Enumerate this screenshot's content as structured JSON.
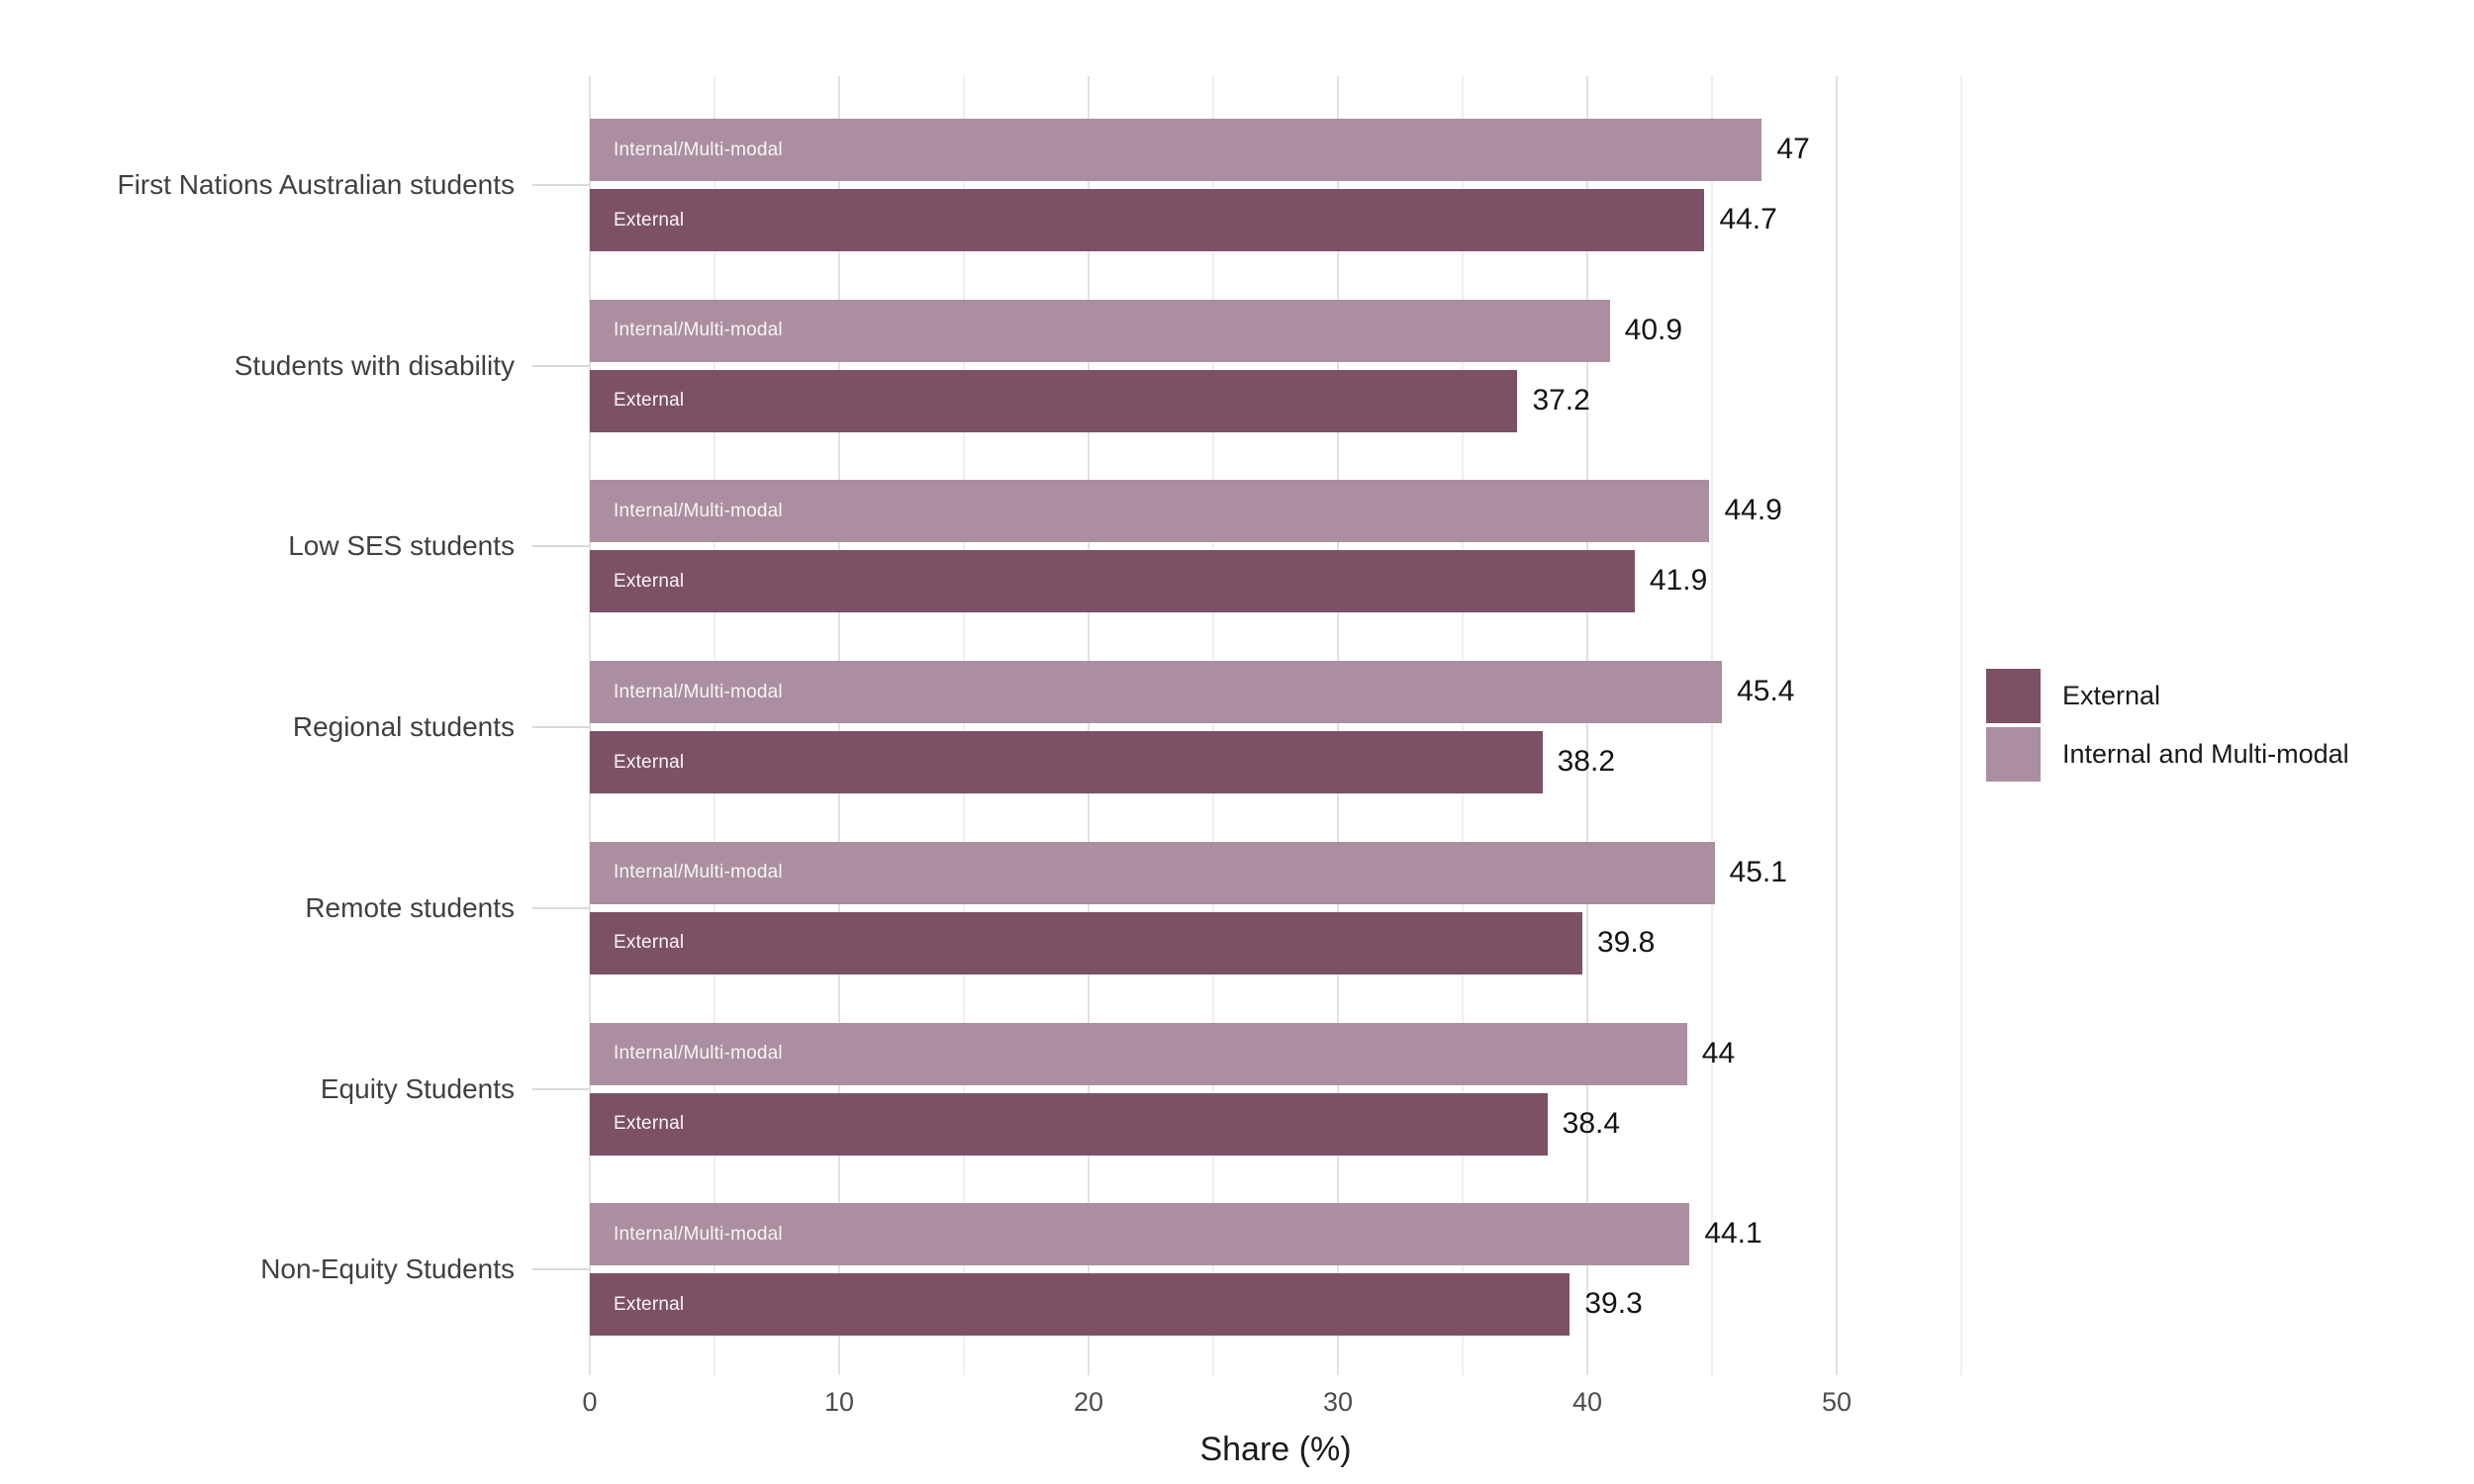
{
  "chart_data": {
    "type": "bar",
    "orientation": "horizontal",
    "xlabel": "Share (%)",
    "ylabel": "",
    "xlim": [
      0,
      55
    ],
    "x_ticks": [
      0,
      10,
      20,
      30,
      40,
      50
    ],
    "grid_values": [
      0,
      5,
      10,
      15,
      20,
      25,
      30,
      35,
      40,
      45,
      50,
      55
    ],
    "grid": "on",
    "background": "#ffffff",
    "categories": [
      "First Nations Australian students",
      "Students with disability",
      "Low SES students",
      "Regional students",
      "Remote students",
      "Equity Students",
      "Non-Equity Students"
    ],
    "series": [
      {
        "name": "Internal and Multi-modal",
        "bar_label": "Internal/Multi-modal",
        "color": "#AB8FA0",
        "values": [
          47,
          40.9,
          44.9,
          45.4,
          45.1,
          44,
          44.1
        ],
        "value_labels": [
          "47",
          "40.9",
          "44.9",
          "45.4",
          "45.1",
          "44",
          "44.1"
        ]
      },
      {
        "name": "External",
        "bar_label": "External",
        "color": "#7C5166",
        "values": [
          44.7,
          37.2,
          41.9,
          38.2,
          39.8,
          38.4,
          39.3
        ],
        "value_labels": [
          "44.7",
          "37.2",
          "41.9",
          "38.2",
          "39.8",
          "38.4",
          "39.3"
        ]
      }
    ],
    "legend": {
      "position": "right",
      "items": [
        {
          "label": "External",
          "color": "#7C5166"
        },
        {
          "label": "Internal and Multi-modal",
          "color": "#AB8FA0"
        }
      ]
    }
  },
  "colors": {
    "grid_major": "#e2e2e2",
    "grid_minor": "#efefef",
    "axis_text": "#4d4d4d",
    "category_text": "#404040",
    "value_text": "#141414"
  }
}
